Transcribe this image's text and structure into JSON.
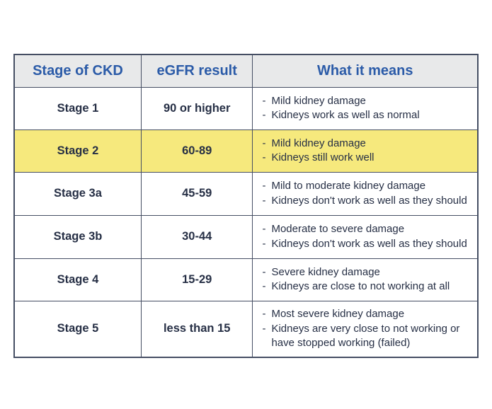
{
  "page": {
    "background": "#ffffff"
  },
  "table": {
    "title_semantic": "ckd-stages-table",
    "colors": {
      "border": "#454e63",
      "header_bg": "#e8e9ea",
      "header_text": "#2b5ba8",
      "body_text": "#262f45",
      "highlight_bg": "#f6e97d"
    },
    "headers": [
      "Stage of CKD",
      "eGFR result",
      "What it means"
    ],
    "rows": [
      {
        "stage": "Stage 1",
        "egfr": "90 or higher",
        "meaning": [
          "Mild kidney damage",
          "Kidneys work as well as normal"
        ],
        "highlighted": false
      },
      {
        "stage": "Stage 2",
        "egfr": "60-89",
        "meaning": [
          "Mild kidney damage",
          "Kidneys still work well"
        ],
        "highlighted": true
      },
      {
        "stage": "Stage 3a",
        "egfr": "45-59",
        "meaning": [
          "Mild to moderate kidney damage",
          "Kidneys don't work as well as they should"
        ],
        "highlighted": false
      },
      {
        "stage": "Stage 3b",
        "egfr": "30-44",
        "meaning": [
          "Moderate to severe damage",
          "Kidneys don't work as well as they should"
        ],
        "highlighted": false
      },
      {
        "stage": "Stage 4",
        "egfr": "15-29",
        "meaning": [
          "Severe kidney damage",
          "Kidneys are close to not working at all"
        ],
        "highlighted": false
      },
      {
        "stage": "Stage 5",
        "egfr": "less than 15",
        "meaning": [
          "Most severe kidney damage",
          "Kidneys are very close to not working or have stopped working (failed)"
        ],
        "highlighted": false
      }
    ]
  }
}
